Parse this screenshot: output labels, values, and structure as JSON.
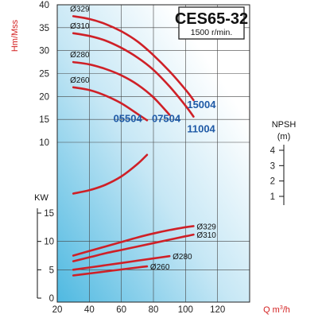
{
  "chart_data": {
    "type": "line",
    "title": "CES65-32",
    "subtitle": "1500 r/min.",
    "x_axis": {
      "label_text": "Q m",
      "label_superscript": "3",
      "label_suffix": "/h",
      "ticks": [
        "20",
        "40",
        "60",
        "80",
        "100",
        "120"
      ],
      "range": [
        20,
        140
      ]
    },
    "head_axis": {
      "label": "Hm/Mss",
      "ticks": [
        "40",
        "35",
        "30",
        "25",
        "20",
        "15",
        "10"
      ],
      "range": [
        0,
        40
      ]
    },
    "power_axis": {
      "label": "KW",
      "ticks": [
        "15",
        "10",
        "5",
        "0"
      ],
      "range": [
        0,
        15
      ]
    },
    "npsh_axis": {
      "label": "NPSH",
      "unit": "(m)",
      "ticks": [
        "4",
        "3",
        "2",
        "1"
      ],
      "range": [
        1,
        4
      ]
    },
    "grid": true,
    "head_series": [
      {
        "name": "Ø329",
        "x": [
          30,
          40,
          50,
          60,
          70,
          80,
          90,
          100,
          105
        ],
        "y": [
          37.5,
          36.9,
          35.8,
          34.2,
          32.0,
          29.0,
          25.5,
          21.5,
          19.2
        ]
      },
      {
        "name": "Ø310",
        "x": [
          30,
          40,
          50,
          60,
          70,
          80,
          90,
          100,
          105
        ],
        "y": [
          33.8,
          33.2,
          32.2,
          30.6,
          28.5,
          25.8,
          22.2,
          18.0,
          15.6
        ]
      },
      {
        "name": "Ø280",
        "x": [
          30,
          40,
          50,
          60,
          70,
          80,
          90
        ],
        "y": [
          27.5,
          27.0,
          26.0,
          24.6,
          22.6,
          19.8,
          16.0
        ]
      },
      {
        "name": "Ø260",
        "x": [
          30,
          40,
          50,
          60,
          70,
          76
        ],
        "y": [
          22.0,
          21.4,
          20.2,
          18.5,
          16.2,
          14.8
        ]
      }
    ],
    "model_labels": [
      "15004",
      "05504",
      "07504",
      "11004"
    ],
    "npsh_series": {
      "x": [
        30,
        40,
        50,
        60,
        70,
        76
      ],
      "y": [
        1.18,
        1.4,
        1.75,
        2.3,
        3.1,
        3.7
      ]
    },
    "power_series": [
      {
        "name": "Ø329",
        "x": [
          30,
          40,
          50,
          60,
          70,
          80,
          90,
          100,
          105
        ],
        "y": [
          7.5,
          8.3,
          9.1,
          9.9,
          10.7,
          11.4,
          12.0,
          12.5,
          12.7
        ]
      },
      {
        "name": "Ø310",
        "x": [
          30,
          40,
          50,
          60,
          70,
          80,
          90,
          100,
          105
        ],
        "y": [
          6.5,
          7.2,
          7.9,
          8.5,
          9.1,
          9.7,
          10.3,
          10.9,
          11.2
        ]
      },
      {
        "name": "Ø280",
        "x": [
          30,
          40,
          50,
          60,
          70,
          80,
          90
        ],
        "y": [
          5.0,
          5.4,
          5.8,
          6.2,
          6.6,
          7.0,
          7.4
        ]
      },
      {
        "name": "Ø260",
        "x": [
          30,
          40,
          50,
          60,
          70,
          76
        ],
        "y": [
          4.0,
          4.35,
          4.7,
          5.05,
          5.4,
          5.6
        ]
      }
    ],
    "colors": {
      "curve": "#cf2027",
      "axis_red": "#d31f1f",
      "model_blue": "#1f5aa6",
      "grid": "#444444"
    }
  }
}
